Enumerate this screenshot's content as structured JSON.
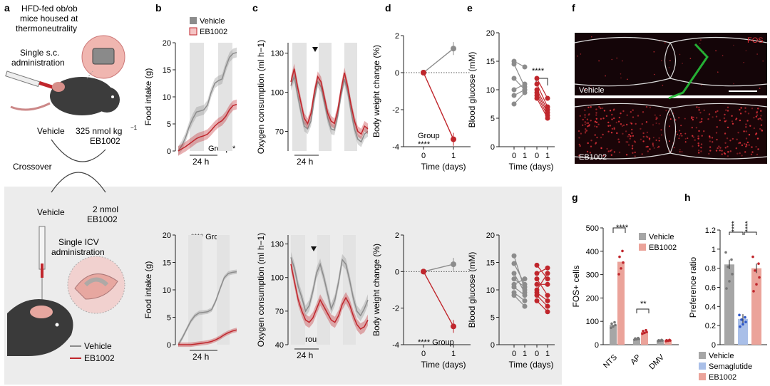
{
  "colors": {
    "vehicle": "#8c8c8c",
    "eb1002": "#c0262c",
    "semaglutide": "#2d57c9",
    "shade": "#e3e3e3",
    "panel": "#ececec"
  },
  "panel_a": {
    "letter": "a",
    "mouse_line1": "HFD-fed ob/ob",
    "mouse_line2": "mice housed at",
    "mouse_line3": "thermoneutrality",
    "sc_line1": "Single s.c.",
    "sc_line2": "administration",
    "vehicle": "Vehicle",
    "dose_sc": "325 nmol kg",
    "dose_sc_exp": "−1",
    "eb_sc": "EB1002",
    "crossover": "Crossover",
    "vehicle2": "Vehicle",
    "dose_icv": "2 nmol",
    "eb_icv": "EB1002",
    "icv_line1": "Single ICV",
    "icv_line2": "administration",
    "legend_vehicle": "Vehicle",
    "legend_eb": "EB1002"
  },
  "panel_b": {
    "letter": "b",
    "legend_vehicle": "Vehicle",
    "legend_eb": "EB1002",
    "stat": "Group",
    "stat_star": "*",
    "scale": "24 h",
    "stat2": "**** Group"
  },
  "panel_c": {
    "letter": "c",
    "stat2": "** Group",
    "scale": "24 h"
  },
  "panel_d": {
    "letter": "d",
    "stat_top1": "Group",
    "stat_top2": "****",
    "stat_bottom": "**** Group"
  },
  "panel_e": {
    "letter": "e",
    "stat": "****"
  },
  "panel_f": {
    "letter": "f",
    "fos": "FOS",
    "vehicle": "Vehicle",
    "eb": "EB1002"
  },
  "panel_g": {
    "letter": "g",
    "legend_vehicle": "Vehicle",
    "legend_eb": "EB1002",
    "stat_nts": "****",
    "stat_ap": "**"
  },
  "panel_h": {
    "letter": "h",
    "stat1": "****",
    "stat2": "****",
    "legend": [
      "Vehicle",
      "Semaglutide",
      "EB1002"
    ]
  },
  "chart_data": [
    {
      "id": "b_top",
      "type": "line",
      "xlabel": "",
      "ylabel": "Food intake (g)",
      "ylim": [
        0,
        20
      ],
      "yticks": [
        0,
        5,
        10,
        15,
        20
      ],
      "series": [
        {
          "name": "Vehicle",
          "values": [
            0,
            1,
            2.5,
            4.5,
            6,
            7.2,
            7.4,
            7.6,
            8.5,
            10.8,
            12.5,
            13,
            13.3,
            15.5,
            17.3,
            18,
            18.2
          ]
        },
        {
          "name": "EB1002",
          "values": [
            0,
            0.4,
            0.8,
            1.3,
            1.8,
            2.3,
            2.6,
            2.8,
            3.1,
            3.8,
            4.6,
            5.2,
            5.6,
            6.4,
            7.6,
            8.4,
            8.6
          ]
        }
      ]
    },
    {
      "id": "b_bottom",
      "type": "line",
      "xlabel": "",
      "ylabel": "Food intake (g)",
      "ylim": [
        0,
        20
      ],
      "yticks": [
        0,
        5,
        10,
        15,
        20
      ],
      "series": [
        {
          "name": "Vehicle",
          "values": [
            0,
            1.3,
            2.8,
            4.3,
            5.3,
            5.8,
            5.9,
            6,
            6.4,
            8,
            10.2,
            12.2,
            13,
            13.2,
            13.3
          ]
        },
        {
          "name": "EB1002",
          "values": [
            0,
            0,
            0,
            0,
            0.1,
            0.2,
            0.3,
            0.4,
            0.6,
            0.9,
            1.3,
            1.8,
            2.2,
            2.5,
            2.7
          ]
        }
      ]
    },
    {
      "id": "c_top",
      "type": "line",
      "xlabel": "",
      "ylabel": "Oxygen consumption (ml h−1)",
      "ylim": [
        55,
        138
      ],
      "yticks": [
        70,
        100,
        130
      ],
      "series": [
        {
          "name": "Vehicle",
          "values": [
            105,
            112,
            98,
            85,
            74,
            72,
            78,
            95,
            108,
            104,
            92,
            80,
            72,
            71,
            82,
            98,
            110,
            100,
            85,
            72,
            64,
            62,
            68,
            70
          ]
        },
        {
          "name": "EB1002",
          "values": [
            108,
            118,
            104,
            92,
            80,
            76,
            84,
            100,
            112,
            108,
            96,
            84,
            78,
            76,
            86,
            102,
            115,
            104,
            90,
            78,
            70,
            68,
            74,
            72
          ]
        }
      ]
    },
    {
      "id": "c_bottom",
      "type": "line",
      "xlabel": "",
      "ylabel": "Oxygen consumption (ml h−1)",
      "ylim": [
        40,
        138
      ],
      "yticks": [
        40,
        70,
        100,
        130
      ],
      "series": [
        {
          "name": "Vehicle",
          "values": [
            118,
            108,
            92,
            82,
            70,
            75,
            88,
            104,
            112,
            100,
            86,
            72,
            80,
            96,
            116,
            112,
            98,
            82,
            70,
            66,
            72,
            80
          ]
        },
        {
          "name": "EB1002",
          "values": [
            112,
            96,
            80,
            70,
            62,
            60,
            64,
            72,
            80,
            74,
            68,
            62,
            60,
            66,
            76,
            82,
            76,
            66,
            58,
            54,
            56,
            62
          ]
        }
      ]
    },
    {
      "id": "d_top",
      "type": "line",
      "xlabel": "Time (days)",
      "ylabel": "Body weight change (%)",
      "ylim": [
        -4,
        2
      ],
      "yticks": [
        -4,
        -2,
        0,
        2
      ],
      "x": [
        0,
        1
      ],
      "series": [
        {
          "name": "Vehicle",
          "values": [
            0,
            1.3
          ]
        },
        {
          "name": "EB1002",
          "values": [
            0,
            -3.6
          ]
        }
      ]
    },
    {
      "id": "d_bottom",
      "type": "line",
      "xlabel": "Time (days)",
      "ylabel": "Body weight change (%)",
      "ylim": [
        -4,
        2
      ],
      "yticks": [
        -4,
        -2,
        0,
        2
      ],
      "x": [
        0,
        1
      ],
      "series": [
        {
          "name": "Vehicle",
          "values": [
            0,
            0.4
          ]
        },
        {
          "name": "EB1002",
          "values": [
            0,
            -3.0
          ]
        }
      ]
    },
    {
      "id": "e_top",
      "type": "scatter",
      "xlabel": "Time (days)",
      "ylabel": "Blood glucose (mM)",
      "ylim": [
        0,
        20
      ],
      "yticks": [
        0,
        5,
        10,
        15,
        20
      ],
      "x_ticks": [
        "0",
        "1",
        "0",
        "1"
      ],
      "series": [
        {
          "name": "Vehicle",
          "pairs": [
            [
              15,
              14
            ],
            [
              14.5,
              10.5
            ],
            [
              12,
              10
            ],
            [
              10,
              11
            ],
            [
              9,
              10
            ],
            [
              7.5,
              9.5
            ]
          ]
        },
        {
          "name": "EB1002",
          "pairs": [
            [
              12,
              8.5
            ],
            [
              11,
              7
            ],
            [
              10,
              6.5
            ],
            [
              9.5,
              6
            ],
            [
              9,
              5.5
            ],
            [
              8.5,
              5
            ]
          ]
        }
      ]
    },
    {
      "id": "e_bottom",
      "type": "scatter",
      "xlabel": "Time (days)",
      "ylabel": "Blood glucose (mM)",
      "ylim": [
        0,
        20
      ],
      "yticks": [
        0,
        5,
        10,
        15,
        20
      ],
      "x_ticks": [
        "0",
        "1",
        "0",
        "1"
      ],
      "series": [
        {
          "name": "Vehicle",
          "pairs": [
            [
              16.2,
              10
            ],
            [
              14.8,
              11
            ],
            [
              13,
              9.5
            ],
            [
              12,
              10.5
            ],
            [
              11,
              12
            ],
            [
              10.5,
              9
            ],
            [
              9.5,
              8
            ],
            [
              9,
              7
            ]
          ]
        },
        {
          "name": "EB1002",
          "pairs": [
            [
              14.5,
              12
            ],
            [
              13,
              14
            ],
            [
              12,
              9
            ],
            [
              11,
              11
            ],
            [
              10,
              13
            ],
            [
              9.5,
              8
            ],
            [
              9,
              7
            ],
            [
              8,
              6
            ]
          ]
        }
      ]
    },
    {
      "id": "g",
      "type": "bar",
      "xlabel": "",
      "ylabel": "FOS+ cells",
      "ylim": [
        0,
        500
      ],
      "yticks": [
        0,
        100,
        200,
        300,
        400,
        500
      ],
      "categories": [
        "NTS",
        "AP",
        "DMV"
      ],
      "series": [
        {
          "name": "Vehicle",
          "values": [
            85,
            25,
            18
          ]
        },
        {
          "name": "EB1002",
          "values": [
            355,
            55,
            18
          ]
        }
      ]
    },
    {
      "id": "h",
      "type": "bar",
      "xlabel": "",
      "ylabel": "Preference ratio",
      "ylim": [
        0,
        1.2
      ],
      "yticks": [
        0,
        0.2,
        0.4,
        0.6,
        0.8,
        1.0,
        1.2
      ],
      "categories": [
        "Vehicle",
        "Semaglutide",
        "EB1002"
      ],
      "values": [
        0.84,
        0.27,
        0.8
      ]
    }
  ]
}
